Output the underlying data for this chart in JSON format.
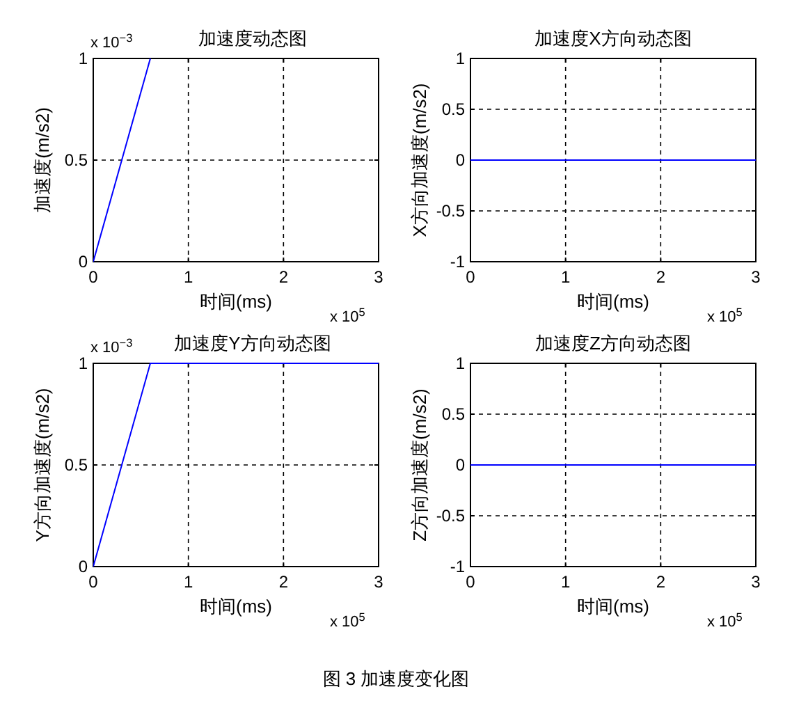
{
  "chart_data": [
    {
      "type": "line",
      "title": "加速度动态图",
      "xlabel": "时间(ms)",
      "ylabel": "加速度(m/s2)",
      "x": [
        0,
        0.6
      ],
      "series": [
        {
          "color": "#0000ff",
          "values": [
            0,
            1
          ]
        }
      ],
      "xlim": [
        0,
        3
      ],
      "xticks": [
        0,
        1,
        2,
        3
      ],
      "ylim": [
        0,
        1
      ],
      "yticks": [
        0,
        0.5,
        1
      ],
      "grid": true,
      "line_style": "solid",
      "annotations": [
        "x 10$^{−3}$",
        "x 10$^{5}$"
      ]
    },
    {
      "type": "line",
      "title": "加速度X方向动态图",
      "xlabel": "时间(ms)",
      "ylabel": "X方向加速度(m/s2)",
      "x": [
        0,
        3
      ],
      "series": [
        {
          "color": "#0000ff",
          "values": [
            0,
            0
          ]
        }
      ],
      "xlim": [
        0,
        3
      ],
      "xticks": [
        0,
        1,
        2,
        3
      ],
      "ylim": [
        -1,
        1
      ],
      "yticks": [
        -1,
        -0.5,
        0,
        0.5,
        1
      ],
      "grid": true,
      "line_style": "solid",
      "annotations": [
        "x 10$^{5}$"
      ]
    },
    {
      "type": "line",
      "title": "加速度Y方向动态图",
      "xlabel": "时间(ms)",
      "ylabel": "Y方向加速度(m/s2)",
      "x": [
        0,
        0.6,
        3
      ],
      "series": [
        {
          "color": "#0000ff",
          "values": [
            0,
            1,
            1
          ]
        }
      ],
      "xlim": [
        0,
        3
      ],
      "xticks": [
        0,
        1,
        2,
        3
      ],
      "ylim": [
        0,
        1
      ],
      "yticks": [
        0,
        0.5,
        1
      ],
      "grid": true,
      "line_style": "solid",
      "annotations": [
        "x 10$^{−3}$",
        "x 10$^{5}$"
      ]
    },
    {
      "type": "line",
      "title": "加速度Z方向动态图",
      "xlabel": "时间(ms)",
      "ylabel": "Z方向加速度(m/s2)",
      "x": [
        0,
        3
      ],
      "series": [
        {
          "color": "#0000ff",
          "values": [
            0,
            0
          ]
        }
      ],
      "xlim": [
        0,
        3
      ],
      "xticks": [
        0,
        1,
        2,
        3
      ],
      "ylim": [
        -1,
        1
      ],
      "yticks": [
        -1,
        -0.5,
        0,
        0.5,
        1
      ],
      "grid": true,
      "line_style": "solid",
      "annotations": [
        "x 10$^{5}$",
        "图 3  加速度变化图"
      ]
    }
  ]
}
